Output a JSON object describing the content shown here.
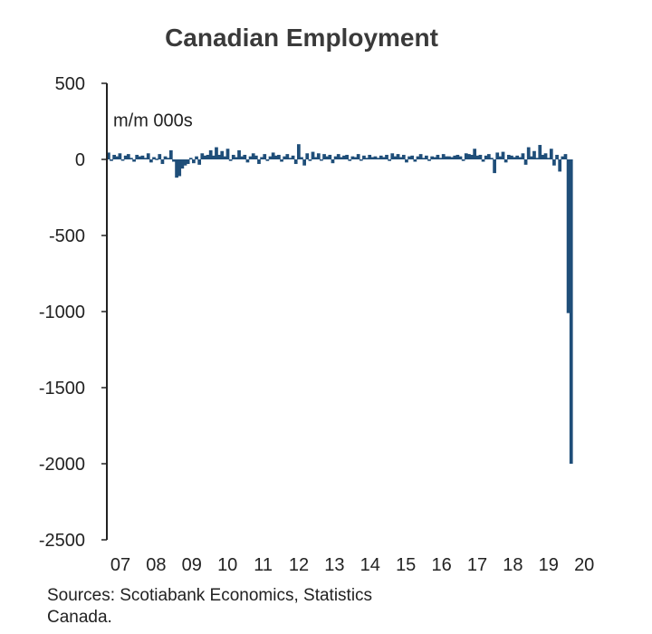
{
  "chart_data": {
    "type": "bar",
    "title": "Canadian Employment",
    "unit_label": "m/m 000s",
    "ylim": [
      -2500,
      500
    ],
    "yticks": [
      "500",
      "0",
      "-500",
      "-1000",
      "-1500",
      "-2000",
      "-2500"
    ],
    "ytick_values": [
      500,
      0,
      -500,
      -1000,
      -1500,
      -2000,
      -2500
    ],
    "xticks": [
      "07",
      "08",
      "09",
      "10",
      "11",
      "12",
      "13",
      "14",
      "15",
      "16",
      "17",
      "18",
      "19",
      "20"
    ],
    "x_range": [
      "2007-01",
      "2020-04"
    ],
    "grid": false,
    "series": [
      {
        "values": [
          45,
          -10,
          30,
          20,
          40,
          -5,
          25,
          35,
          10,
          -15,
          30,
          20,
          25,
          10,
          40,
          -20,
          15,
          5,
          35,
          -30,
          20,
          10,
          60,
          -15,
          -120,
          -110,
          -60,
          -40,
          -30,
          10,
          -25,
          20,
          -35,
          40,
          25,
          30,
          60,
          25,
          80,
          30,
          55,
          20,
          70,
          -10,
          30,
          15,
          60,
          20,
          30,
          -20,
          20,
          40,
          25,
          -30,
          15,
          35,
          -10,
          20,
          45,
          25,
          30,
          -15,
          20,
          35,
          10,
          25,
          -30,
          100,
          15,
          -40,
          40,
          -10,
          50,
          15,
          40,
          -5,
          35,
          20,
          30,
          -25,
          20,
          35,
          15,
          25,
          30,
          -10,
          20,
          15,
          35,
          -5,
          25,
          10,
          30,
          15,
          20,
          10,
          25,
          15,
          30,
          -10,
          40,
          20,
          35,
          15,
          30,
          -20,
          20,
          25,
          -15,
          20,
          35,
          10,
          25,
          -10,
          20,
          15,
          30,
          10,
          35,
          20,
          20,
          15,
          25,
          30,
          20,
          -10,
          40,
          35,
          30,
          70,
          25,
          30,
          -15,
          25,
          35,
          10,
          -90,
          45,
          20,
          50,
          -20,
          30,
          25,
          15,
          25,
          15,
          40,
          -35,
          80,
          20,
          55,
          10,
          95,
          30,
          40,
          10,
          70,
          -40,
          30,
          -80,
          20,
          35,
          -1010,
          -2000
        ]
      }
    ],
    "bar_color": "#1f4e79"
  },
  "footer": {
    "source_line1": "Sources: Scotiabank Economics, Statistics",
    "source_line2": "Canada."
  }
}
